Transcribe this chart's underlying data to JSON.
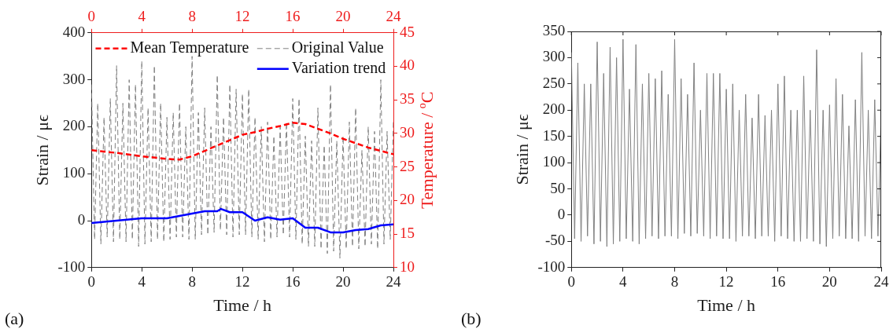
{
  "chart_data": [
    {
      "type": "line",
      "xlabel": "Time / h",
      "ylabel": "Strain / μϵ",
      "y2label": "Temperature / $^{o}$C",
      "annotations": [
        "(a)"
      ],
      "xlim": [
        0,
        24
      ],
      "xticks": [
        0,
        4,
        8,
        12,
        16,
        20,
        24
      ],
      "x2lim": [
        0,
        24
      ],
      "x2ticks": [
        0,
        4,
        8,
        12,
        16,
        20,
        24
      ],
      "ylim": [
        -100,
        400
      ],
      "yticks": [
        -100,
        0,
        100,
        200,
        300,
        400
      ],
      "y2lim": [
        10,
        45
      ],
      "y2ticks": [
        10,
        15,
        20,
        25,
        30,
        35,
        40,
        45
      ],
      "grid": false,
      "legend": "top right",
      "marker": "none",
      "series": [
        {
          "name": "Mean Temperature",
          "color": "#ff0000",
          "axis": "y2",
          "line_style": "dashed",
          "x": [
            0,
            2,
            4,
            6,
            7,
            8,
            10,
            12,
            13,
            14,
            15,
            16,
            17,
            18,
            19,
            20,
            22,
            24
          ],
          "values": [
            27.5,
            27.1,
            26.6,
            26.2,
            26.1,
            26.6,
            28.2,
            29.8,
            30.2,
            30.7,
            31.1,
            31.6,
            31.4,
            30.7,
            30.0,
            29.2,
            27.9,
            26.9
          ]
        },
        {
          "name": "Original Value",
          "color": "#808080",
          "line_style": "dashed",
          "x": [
            0,
            0.25,
            0.5,
            0.75,
            1,
            1.25,
            1.5,
            1.75,
            2,
            2.25,
            2.5,
            2.75,
            3,
            3.25,
            3.5,
            3.75,
            4,
            4.25,
            4.5,
            4.75,
            5,
            5.25,
            5.5,
            5.75,
            6,
            6.25,
            6.5,
            6.75,
            7,
            7.25,
            7.5,
            7.75,
            8,
            8.25,
            8.5,
            8.75,
            9,
            9.25,
            9.5,
            9.75,
            10,
            10.25,
            10.5,
            10.75,
            11,
            11.25,
            11.5,
            11.75,
            12,
            12.25,
            12.5,
            12.75,
            13,
            13.25,
            13.5,
            13.75,
            14,
            14.25,
            14.5,
            14.75,
            15,
            15.25,
            15.5,
            15.75,
            16,
            16.25,
            16.5,
            16.75,
            17,
            17.25,
            17.5,
            17.75,
            18,
            18.25,
            18.5,
            18.75,
            19,
            19.25,
            19.5,
            19.75,
            20,
            20.25,
            20.5,
            20.75,
            21,
            21.25,
            21.5,
            21.75,
            22,
            22.25,
            22.5,
            22.75,
            23,
            23.25,
            23.5,
            23.75,
            24
          ],
          "values": [
            290,
            -40,
            250,
            -50,
            220,
            -35,
            260,
            -45,
            330,
            -40,
            250,
            -45,
            300,
            -40,
            290,
            -55,
            340,
            -50,
            240,
            -45,
            330,
            -40,
            250,
            -45,
            220,
            -40,
            230,
            -35,
            250,
            -35,
            200,
            -40,
            350,
            -40,
            230,
            -30,
            240,
            -30,
            200,
            -25,
            310,
            -20,
            220,
            -30,
            290,
            -35,
            280,
            -30,
            270,
            -30,
            280,
            -35,
            220,
            -40,
            200,
            -45,
            210,
            -40,
            180,
            -35,
            200,
            -30,
            210,
            -35,
            260,
            -40,
            260,
            -50,
            180,
            -55,
            170,
            -55,
            240,
            -60,
            160,
            -70,
            290,
            -65,
            170,
            -80,
            180,
            -60,
            210,
            -55,
            240,
            -60,
            150,
            -55,
            200,
            -50,
            190,
            -60,
            300,
            -50,
            190,
            -40,
            210
          ]
        },
        {
          "name": "Variation trend",
          "color": "#0000ff",
          "line_style": "solid",
          "x": [
            0,
            2,
            4,
            6,
            7,
            8,
            9,
            10,
            10.3,
            11,
            12,
            13,
            14,
            15,
            16,
            17,
            18,
            19,
            20,
            21,
            22,
            23,
            24
          ],
          "values": [
            -5,
            0,
            5,
            5,
            10,
            15,
            20,
            20,
            25,
            18,
            18,
            0,
            7,
            2,
            5,
            -15,
            -15,
            -25,
            -25,
            -20,
            -18,
            -10,
            -8
          ]
        }
      ]
    },
    {
      "type": "line",
      "xlabel": "Time / h",
      "ylabel": "Strain / μϵ",
      "annotations": [
        "(b)"
      ],
      "xlim": [
        0,
        24
      ],
      "xticks": [
        0,
        4,
        8,
        12,
        16,
        20,
        24
      ],
      "ylim": [
        -100,
        350
      ],
      "yticks": [
        -100,
        -50,
        0,
        50,
        100,
        150,
        200,
        250,
        300,
        350
      ],
      "grid": false,
      "legend": false,
      "marker": "none",
      "line_style": "solid",
      "x": [
        0,
        0.25,
        0.5,
        0.75,
        1,
        1.25,
        1.5,
        1.75,
        2,
        2.25,
        2.5,
        2.75,
        3,
        3.25,
        3.5,
        3.75,
        4,
        4.25,
        4.5,
        4.75,
        5,
        5.25,
        5.5,
        5.75,
        6,
        6.25,
        6.5,
        6.75,
        7,
        7.25,
        7.5,
        7.75,
        8,
        8.25,
        8.5,
        8.75,
        9,
        9.25,
        9.5,
        9.75,
        10,
        10.25,
        10.5,
        10.75,
        11,
        11.25,
        11.5,
        11.75,
        12,
        12.25,
        12.5,
        12.75,
        13,
        13.25,
        13.5,
        13.75,
        14,
        14.25,
        14.5,
        14.75,
        15,
        15.25,
        15.5,
        15.75,
        16,
        16.25,
        16.5,
        16.75,
        17,
        17.25,
        17.5,
        17.75,
        18,
        18.25,
        18.5,
        18.75,
        19,
        19.25,
        19.5,
        19.75,
        20,
        20.25,
        20.5,
        20.75,
        21,
        21.25,
        21.5,
        21.75,
        22,
        22.25,
        22.5,
        22.75,
        23,
        23.25,
        23.5,
        23.75,
        24
      ],
      "series": [
        {
          "color": "#808080",
          "values": [
            310,
            -45,
            290,
            -50,
            250,
            -40,
            250,
            -55,
            330,
            -50,
            270,
            -60,
            320,
            -55,
            300,
            -50,
            335,
            -45,
            240,
            -50,
            325,
            -55,
            250,
            -45,
            270,
            -40,
            260,
            -45,
            275,
            -40,
            230,
            -40,
            335,
            -45,
            260,
            -35,
            230,
            -40,
            290,
            -35,
            200,
            -40,
            270,
            -45,
            270,
            -40,
            270,
            -45,
            240,
            -45,
            250,
            -50,
            200,
            -40,
            230,
            -40,
            185,
            -45,
            230,
            -40,
            190,
            -40,
            200,
            -50,
            250,
            -40,
            265,
            -45,
            200,
            -50,
            200,
            -50,
            265,
            -45,
            200,
            -50,
            315,
            -55,
            200,
            -60,
            210,
            -45,
            260,
            -40,
            230,
            -45,
            170,
            -45,
            220,
            -50,
            310,
            -40,
            200,
            -45,
            220,
            -40,
            200
          ]
        }
      ]
    }
  ]
}
